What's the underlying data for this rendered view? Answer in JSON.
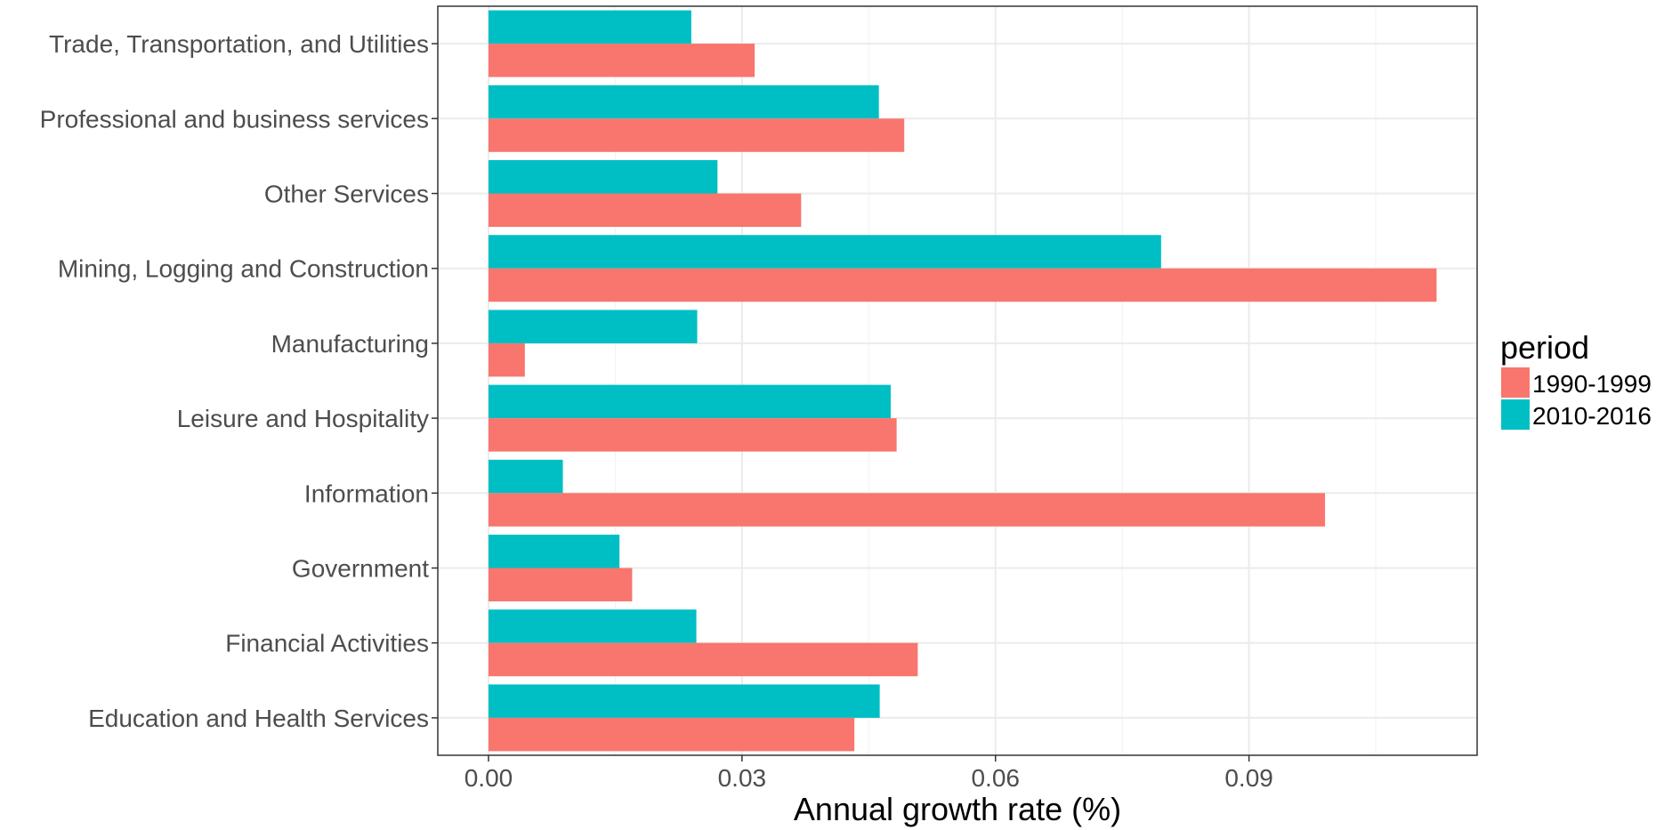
{
  "chart_data": {
    "type": "bar",
    "orientation": "horizontal",
    "title": "",
    "xlabel": "Annual growth rate (%)",
    "ylabel": "",
    "xlim": [
      -0.006,
      0.117
    ],
    "x_ticks": [
      0.0,
      0.03,
      0.06,
      0.09
    ],
    "x_tick_labels": [
      "0.00",
      "0.03",
      "0.06",
      "0.09"
    ],
    "grid": true,
    "categories": [
      "Trade, Transportation, and Utilities",
      "Professional and business services",
      "Other Services",
      "Mining, Logging and Construction",
      "Manufacturing",
      "Leisure and Hospitality",
      "Information",
      "Government",
      "Financial Activities",
      "Education and Health Services"
    ],
    "series": [
      {
        "name": "1990-1999",
        "color": "#F8766D",
        "values": [
          0.0315,
          0.0492,
          0.037,
          0.1122,
          0.0043,
          0.0483,
          0.099,
          0.017,
          0.0508,
          0.0433
        ]
      },
      {
        "name": "2010-2016",
        "color": "#00BFC4",
        "values": [
          0.024,
          0.0462,
          0.0271,
          0.0796,
          0.0247,
          0.0476,
          0.0088,
          0.0155,
          0.0246,
          0.0463
        ]
      }
    ],
    "legend": {
      "title": "period",
      "position": "right"
    }
  }
}
